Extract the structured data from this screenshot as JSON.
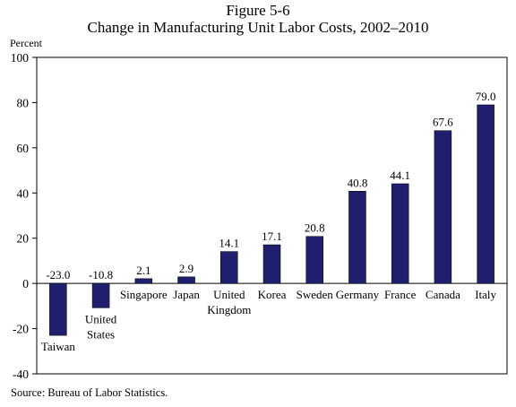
{
  "header": {
    "figure_number": "Figure 5-6",
    "title": "Change in Manufacturing Unit Labor Costs, 2002–2010"
  },
  "source": "Source: Bureau of Labor Statistics.",
  "chart_data": {
    "type": "bar",
    "title": "Change in Manufacturing Unit Labor Costs, 2002–2010",
    "ylabel": "Percent",
    "ylim": [
      -40,
      100
    ],
    "yticks": [
      -40,
      -20,
      0,
      20,
      40,
      60,
      80,
      100
    ],
    "categories": [
      "Taiwan",
      "United States",
      "Singapore",
      "Japan",
      "United Kingdom",
      "Korea",
      "Sweden",
      "Germany",
      "France",
      "Canada",
      "Italy"
    ],
    "category_label_lines": [
      [
        "Taiwan"
      ],
      [
        "United",
        "States"
      ],
      [
        "Singapore"
      ],
      [
        "Japan"
      ],
      [
        "United",
        "Kingdom"
      ],
      [
        "Korea"
      ],
      [
        "Sweden"
      ],
      [
        "Germany"
      ],
      [
        "France"
      ],
      [
        "Canada"
      ],
      [
        "Italy"
      ]
    ],
    "values": [
      -23.0,
      -10.8,
      2.1,
      2.9,
      14.1,
      17.1,
      20.8,
      40.8,
      44.1,
      67.6,
      79.0
    ],
    "value_labels": [
      "-23.0",
      "-10.8",
      "2.1",
      "2.9",
      "14.1",
      "17.1",
      "20.8",
      "40.8",
      "44.1",
      "67.6",
      "79.0"
    ],
    "bar_color": "#1f1f6e",
    "grid": false,
    "legend": "none"
  }
}
